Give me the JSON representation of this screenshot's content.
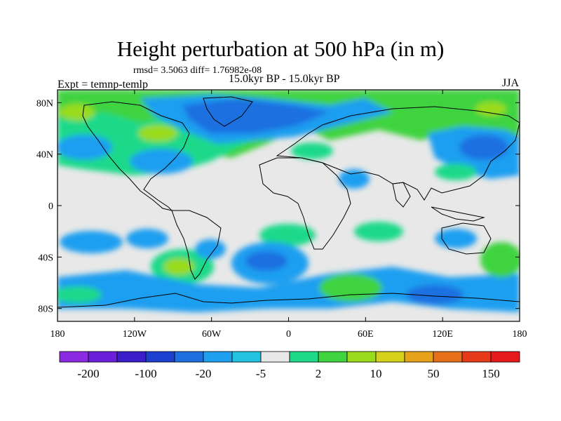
{
  "header": {
    "title": "Height perturbation at 500 hPa (in m)",
    "stats": "rmsd= 3.5063 diff= 1.76982e-08",
    "experiment": "Expt = temnp-temlp",
    "period": "15.0kyr BP - 15.0kyr BP",
    "season": "JJA"
  },
  "axes": {
    "lat_ticks": [
      "80N",
      "40N",
      "0",
      "40S",
      "80S"
    ],
    "lon_ticks": [
      "180",
      "120W",
      "60W",
      "0",
      "60E",
      "120E",
      "180"
    ]
  },
  "colorbar": {
    "colors": [
      "#8a2be2",
      "#6a1fd8",
      "#3c1ec8",
      "#1d3fd0",
      "#1f6fe0",
      "#1e9ff0",
      "#22c2e0",
      "#e8e8e8",
      "#1fd98a",
      "#3fd33f",
      "#9adb1e",
      "#d6d11a",
      "#e6a21a",
      "#e6701a",
      "#e63a1a",
      "#e61a1a"
    ],
    "labels": [
      "-200",
      "-100",
      "-20",
      "-5",
      "2",
      "10",
      "50",
      "150"
    ]
  },
  "chart_data": {
    "type": "filled-contour-map",
    "title": "Height perturbation at 500 hPa (in m)",
    "variable": "500 hPa geopotential height perturbation",
    "units": "m",
    "season": "JJA",
    "xlabel": "",
    "ylabel": "",
    "xlim": [
      -180,
      180
    ],
    "ylim": [
      -90,
      90
    ],
    "contour_levels": [
      -200,
      -150,
      -100,
      -50,
      -20,
      -10,
      -5,
      -2,
      2,
      5,
      10,
      20,
      50,
      100,
      150
    ]
  }
}
